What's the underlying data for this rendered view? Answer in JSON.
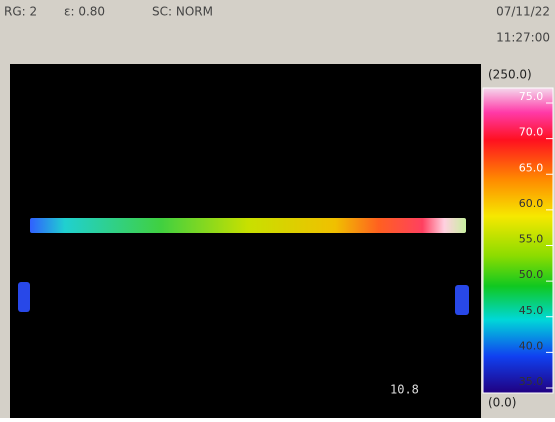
{
  "header": {
    "range": "RG: 2",
    "emissivity": "ε: 0.80",
    "scale_mode": "SC: NORM",
    "date": "07/11/22",
    "time": "11:27:00"
  },
  "scale": {
    "max": "(250.0)",
    "min": "(0.0)",
    "labels": [
      "75.0",
      "70.0",
      "65.0",
      "60.0",
      "55.0",
      "50.0",
      "45.0",
      "40.0",
      "35.0"
    ]
  },
  "image": {
    "readout": "10.8"
  }
}
